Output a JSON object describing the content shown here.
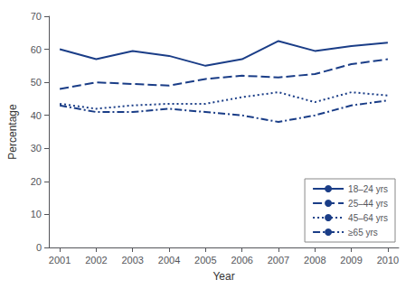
{
  "chart_data": {
    "type": "line",
    "x": [
      2001,
      2002,
      2003,
      2004,
      2005,
      2006,
      2007,
      2008,
      2009,
      2010
    ],
    "series": [
      {
        "name": "18–24 yrs",
        "values": [
          60,
          57,
          59.5,
          58,
          55,
          57,
          62.5,
          59.5,
          61,
          62
        ],
        "line_style": "solid"
      },
      {
        "name": "25–44 yrs",
        "values": [
          48,
          50,
          49.5,
          49,
          51,
          52,
          51.5,
          52.5,
          55.5,
          57
        ],
        "line_style": "dashed"
      },
      {
        "name": "45–64 yrs",
        "values": [
          43.5,
          42,
          43,
          43.5,
          43.5,
          45.5,
          47,
          44,
          47,
          46
        ],
        "line_style": "dotted"
      },
      {
        "name": "≥65 yrs",
        "values": [
          43,
          41,
          41,
          42,
          41,
          40,
          38,
          40,
          43,
          44.5
        ],
        "line_style": "dashdot"
      }
    ],
    "color": "#1a3d87",
    "xlabel": "Year",
    "ylabel": "Percentage",
    "xlim": [
      2000.7,
      2010.3
    ],
    "xticks": [
      2001,
      2002,
      2003,
      2004,
      2005,
      2006,
      2007,
      2008,
      2009,
      2010
    ],
    "ylim": [
      0,
      70
    ],
    "yticks": [
      0,
      10,
      20,
      30,
      40,
      50,
      60,
      70
    ],
    "grid": false,
    "legend": "lower right"
  }
}
